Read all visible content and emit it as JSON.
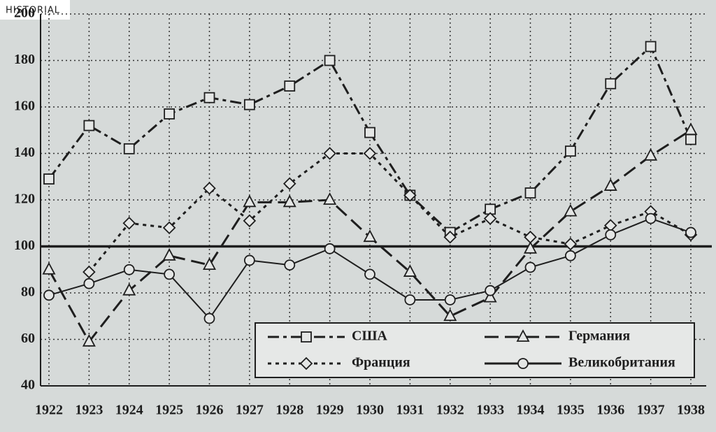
{
  "badge": "HISTORIAL",
  "chart_data": {
    "type": "line",
    "categories": [
      "1922",
      "1923",
      "1924",
      "1925",
      "1926",
      "1927",
      "1928",
      "1929",
      "1930",
      "1931",
      "1932",
      "1933",
      "1934",
      "1935",
      "1936",
      "1937",
      "1938"
    ],
    "ylim": [
      40,
      200
    ],
    "yticks": [
      40,
      60,
      80,
      100,
      120,
      140,
      160,
      180,
      200
    ],
    "grid": true,
    "reference_line": 100,
    "legend": "lower-right",
    "series": [
      {
        "name": "США",
        "color": "#1e1e1e",
        "marker": "square",
        "dash": "dash-dot",
        "values": [
          129,
          152,
          142,
          157,
          164,
          161,
          169,
          180,
          149,
          122,
          106,
          116,
          123,
          141,
          170,
          186,
          146
        ]
      },
      {
        "name": "Германия",
        "color": "#1e1e1e",
        "marker": "triangle",
        "dash": "long-dash",
        "values": [
          90,
          59,
          81,
          96,
          92,
          119,
          119,
          120,
          104,
          89,
          70,
          78,
          99,
          115,
          126,
          139,
          150
        ]
      },
      {
        "name": "Франция",
        "color": "#1e1e1e",
        "marker": "diamond",
        "dash": "dot",
        "values": [
          null,
          89,
          110,
          108,
          125,
          111,
          127,
          140,
          140,
          122,
          104,
          112,
          104,
          101,
          109,
          115,
          105
        ]
      },
      {
        "name": "Великобритания",
        "color": "#1e1e1e",
        "marker": "circle",
        "dash": "solid",
        "values": [
          79,
          84,
          90,
          88,
          69,
          94,
          92,
          99,
          88,
          77,
          77,
          81,
          91,
          96,
          105,
          112,
          106
        ]
      }
    ]
  }
}
